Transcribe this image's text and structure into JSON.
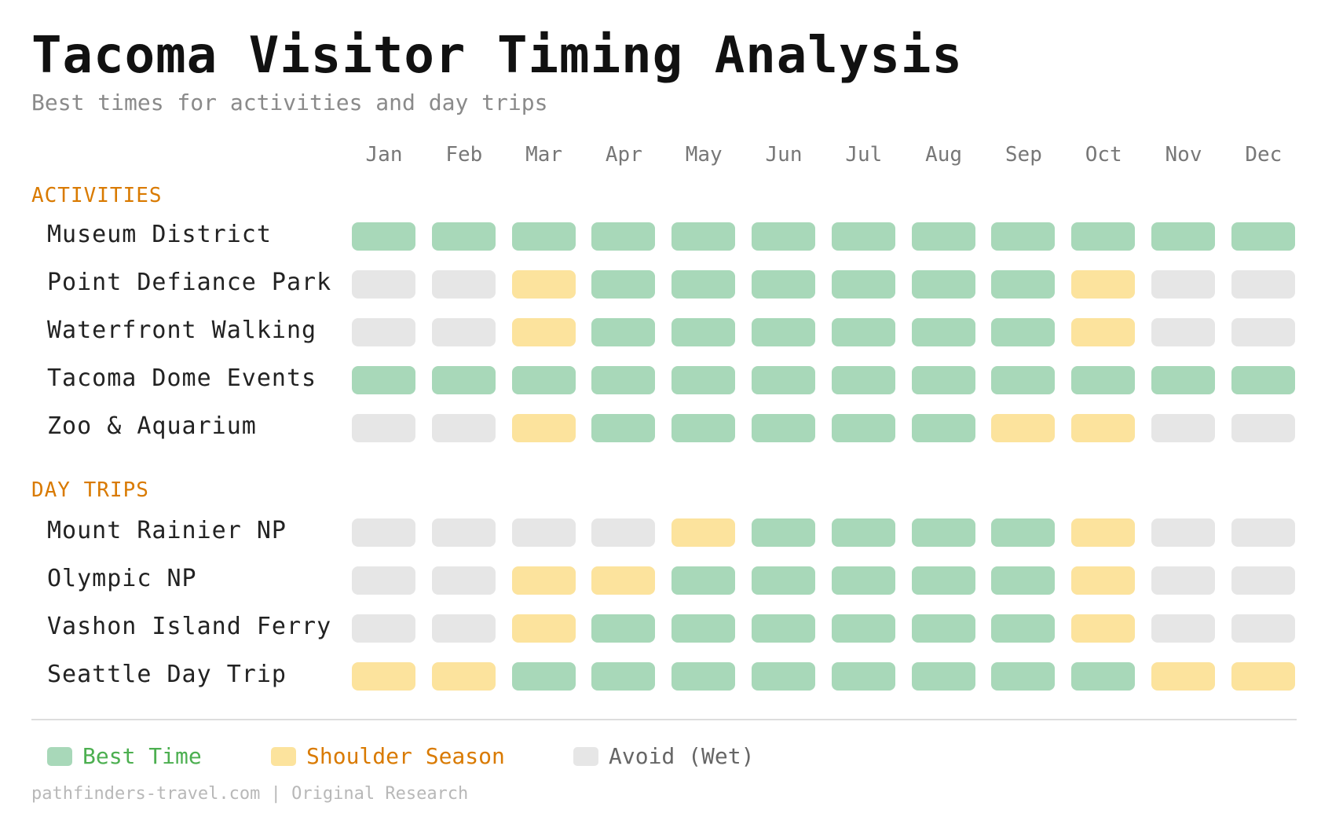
{
  "title": "Tacoma Visitor Timing Analysis",
  "subtitle": "Best times for activities and day trips",
  "footer": "pathfinders-travel.com | Original Research",
  "colors": {
    "best": "#a8d8b9",
    "shoulder": "#fce39d",
    "avoid": "#e6e6e6",
    "best_text": "#4caf50",
    "shoulder_text": "#d97a00",
    "avoid_text": "#666666",
    "section": "#d97a00"
  },
  "legend": [
    {
      "key": "best",
      "label": "Best Time"
    },
    {
      "key": "shoulder",
      "label": "Shoulder Season"
    },
    {
      "key": "avoid",
      "label": "Avoid (Wet)"
    }
  ],
  "chart_data": {
    "type": "heatmap",
    "months": [
      "Jan",
      "Feb",
      "Mar",
      "Apr",
      "May",
      "Jun",
      "Jul",
      "Aug",
      "Sep",
      "Oct",
      "Nov",
      "Dec"
    ],
    "categories": [
      "best",
      "shoulder",
      "avoid"
    ],
    "sections": [
      {
        "name": "ACTIVITIES",
        "rows": [
          {
            "label": "Museum District",
            "values": [
              "best",
              "best",
              "best",
              "best",
              "best",
              "best",
              "best",
              "best",
              "best",
              "best",
              "best",
              "best"
            ]
          },
          {
            "label": "Point Defiance Park",
            "values": [
              "avoid",
              "avoid",
              "shoulder",
              "best",
              "best",
              "best",
              "best",
              "best",
              "best",
              "shoulder",
              "avoid",
              "avoid"
            ]
          },
          {
            "label": "Waterfront Walking",
            "values": [
              "avoid",
              "avoid",
              "shoulder",
              "best",
              "best",
              "best",
              "best",
              "best",
              "best",
              "shoulder",
              "avoid",
              "avoid"
            ]
          },
          {
            "label": "Tacoma Dome Events",
            "values": [
              "best",
              "best",
              "best",
              "best",
              "best",
              "best",
              "best",
              "best",
              "best",
              "best",
              "best",
              "best"
            ]
          },
          {
            "label": "Zoo & Aquarium",
            "values": [
              "avoid",
              "avoid",
              "shoulder",
              "best",
              "best",
              "best",
              "best",
              "best",
              "shoulder",
              "shoulder",
              "avoid",
              "avoid"
            ]
          }
        ]
      },
      {
        "name": "DAY TRIPS",
        "rows": [
          {
            "label": "Mount Rainier NP",
            "values": [
              "avoid",
              "avoid",
              "avoid",
              "avoid",
              "shoulder",
              "best",
              "best",
              "best",
              "best",
              "shoulder",
              "avoid",
              "avoid"
            ]
          },
          {
            "label": "Olympic NP",
            "values": [
              "avoid",
              "avoid",
              "shoulder",
              "shoulder",
              "best",
              "best",
              "best",
              "best",
              "best",
              "shoulder",
              "avoid",
              "avoid"
            ]
          },
          {
            "label": "Vashon Island Ferry",
            "values": [
              "avoid",
              "avoid",
              "shoulder",
              "best",
              "best",
              "best",
              "best",
              "best",
              "best",
              "shoulder",
              "avoid",
              "avoid"
            ]
          },
          {
            "label": "Seattle Day Trip",
            "values": [
              "shoulder",
              "shoulder",
              "best",
              "best",
              "best",
              "best",
              "best",
              "best",
              "best",
              "best",
              "shoulder",
              "shoulder"
            ]
          }
        ]
      }
    ]
  }
}
